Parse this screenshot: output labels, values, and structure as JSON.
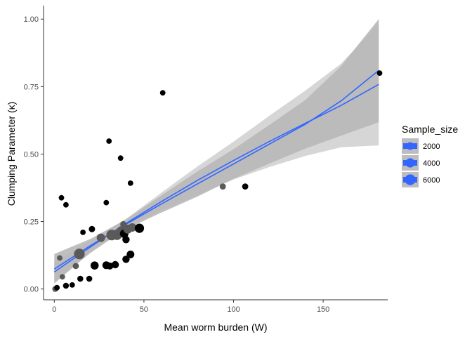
{
  "chart_data": {
    "type": "scatter",
    "xlabel": "Mean worm burden (W)",
    "ylabel": "Clumping Parameter (κ)",
    "xlim": [
      -6,
      186
    ],
    "ylim": [
      -0.04,
      1.05
    ],
    "x_ticks": [
      0,
      50,
      100,
      150
    ],
    "x_tick_labels": [
      "0",
      "50",
      "100",
      "150"
    ],
    "y_ticks": [
      0,
      0.25,
      0.5,
      0.75,
      1.0
    ],
    "y_tick_labels": [
      "0.00",
      "0.25",
      "0.50",
      "0.75",
      "1.00"
    ],
    "grid": false,
    "legend": {
      "title": "Sample_size",
      "position": "right",
      "entries": [
        {
          "label": "2000",
          "size": 2000
        },
        {
          "label": "4000",
          "size": 4000
        },
        {
          "label": "6000",
          "size": 6000
        }
      ]
    },
    "points": [
      {
        "x": 0.5,
        "y": 0.0,
        "size": 700,
        "tone": "grey"
      },
      {
        "x": 1.5,
        "y": 0.005,
        "size": 600,
        "tone": "black"
      },
      {
        "x": 3,
        "y": 0.115,
        "size": 500,
        "tone": "grey"
      },
      {
        "x": 4,
        "y": 0.338,
        "size": 500,
        "tone": "black"
      },
      {
        "x": 4.5,
        "y": 0.045,
        "size": 500,
        "tone": "grey"
      },
      {
        "x": 6.5,
        "y": 0.312,
        "size": 500,
        "tone": "black"
      },
      {
        "x": 6.5,
        "y": 0.012,
        "size": 700,
        "tone": "black"
      },
      {
        "x": 10,
        "y": 0.015,
        "size": 500,
        "tone": "black"
      },
      {
        "x": 12,
        "y": 0.085,
        "size": 900,
        "tone": "grey"
      },
      {
        "x": 14,
        "y": 0.13,
        "size": 6000,
        "tone": "grey"
      },
      {
        "x": 14.5,
        "y": 0.038,
        "size": 800,
        "tone": "black"
      },
      {
        "x": 16,
        "y": 0.21,
        "size": 500,
        "tone": "black"
      },
      {
        "x": 19.5,
        "y": 0.038,
        "size": 800,
        "tone": "black"
      },
      {
        "x": 21,
        "y": 0.222,
        "size": 1000,
        "tone": "black"
      },
      {
        "x": 22.5,
        "y": 0.087,
        "size": 2500,
        "tone": "black"
      },
      {
        "x": 26,
        "y": 0.19,
        "size": 2800,
        "tone": "grey"
      },
      {
        "x": 29,
        "y": 0.32,
        "size": 500,
        "tone": "black"
      },
      {
        "x": 29,
        "y": 0.088,
        "size": 2200,
        "tone": "black"
      },
      {
        "x": 30.5,
        "y": 0.548,
        "size": 500,
        "tone": "black"
      },
      {
        "x": 31,
        "y": 0.085,
        "size": 1500,
        "tone": "black"
      },
      {
        "x": 32,
        "y": 0.2,
        "size": 6000,
        "tone": "grey"
      },
      {
        "x": 34,
        "y": 0.09,
        "size": 1800,
        "tone": "black"
      },
      {
        "x": 35,
        "y": 0.2,
        "size": 5000,
        "tone": "grey"
      },
      {
        "x": 37,
        "y": 0.485,
        "size": 500,
        "tone": "black"
      },
      {
        "x": 37.5,
        "y": 0.215,
        "size": 4500,
        "tone": "grey"
      },
      {
        "x": 38.5,
        "y": 0.24,
        "size": 1000,
        "tone": "grey"
      },
      {
        "x": 39,
        "y": 0.205,
        "size": 3000,
        "tone": "black"
      },
      {
        "x": 40,
        "y": 0.183,
        "size": 1800,
        "tone": "black"
      },
      {
        "x": 40,
        "y": 0.11,
        "size": 1800,
        "tone": "black"
      },
      {
        "x": 41,
        "y": 0.222,
        "size": 3500,
        "tone": "grey"
      },
      {
        "x": 42.5,
        "y": 0.392,
        "size": 500,
        "tone": "black"
      },
      {
        "x": 42.5,
        "y": 0.128,
        "size": 2200,
        "tone": "black"
      },
      {
        "x": 43.5,
        "y": 0.228,
        "size": 2800,
        "tone": "grey"
      },
      {
        "x": 47.5,
        "y": 0.225,
        "size": 4000,
        "tone": "black"
      },
      {
        "x": 60.5,
        "y": 0.727,
        "size": 500,
        "tone": "black"
      },
      {
        "x": 94,
        "y": 0.38,
        "size": 900,
        "tone": "grey"
      },
      {
        "x": 106.5,
        "y": 0.38,
        "size": 900,
        "tone": "black"
      },
      {
        "x": 181.5,
        "y": 0.8,
        "size": 500,
        "tone": "black"
      }
    ],
    "fit_lines": [
      {
        "x": [
          0,
          20,
          40,
          60,
          80,
          100,
          120,
          140,
          160,
          181
        ],
        "y": [
          0.063,
          0.155,
          0.243,
          0.325,
          0.403,
          0.476,
          0.547,
          0.614,
          0.68,
          0.758
        ],
        "band_lower": [
          0.028,
          0.132,
          0.225,
          0.292,
          0.349,
          0.406,
          0.452,
          0.493,
          0.525,
          0.532
        ],
        "band_upper": [
          0.1,
          0.178,
          0.26,
          0.358,
          0.455,
          0.546,
          0.642,
          0.735,
          0.835,
          0.983
        ]
      },
      {
        "x": [
          0,
          20,
          40,
          60,
          80,
          100,
          120,
          140,
          160,
          181
        ],
        "y": [
          0.074,
          0.16,
          0.24,
          0.316,
          0.39,
          0.463,
          0.537,
          0.61,
          0.697,
          0.81
        ],
        "band_lower": [
          0.02,
          0.135,
          0.222,
          0.284,
          0.343,
          0.408,
          0.465,
          0.52,
          0.568,
          0.618
        ],
        "band_upper": [
          0.13,
          0.185,
          0.258,
          0.348,
          0.436,
          0.518,
          0.608,
          0.7,
          0.826,
          1.0
        ]
      }
    ],
    "colors": {
      "fit_line": "#3366ff",
      "band_light": "#d6d6d6",
      "band_dark": "#b8b8b8",
      "point_black": "#000000",
      "point_grey": "#5a5a5a",
      "legend_key_bg": "#bdbdbd",
      "axis": "#333333"
    }
  }
}
